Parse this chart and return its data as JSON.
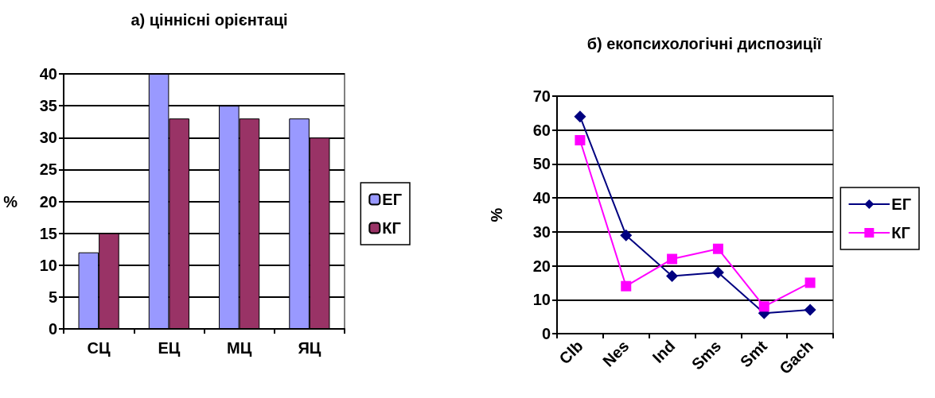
{
  "chart_data": [
    {
      "type": "bar",
      "title": "а) ціннісні орієнтаці",
      "ylabel": "%",
      "categories": [
        "СЦ",
        "ЕЦ",
        "МЦ",
        "ЯЦ"
      ],
      "series": [
        {
          "name": "ЕГ",
          "color": "#9999ff",
          "values": [
            12,
            40,
            35,
            33
          ]
        },
        {
          "name": "КГ",
          "color": "#993366",
          "values": [
            15,
            33,
            33,
            30
          ]
        }
      ],
      "ylim": [
        0,
        40
      ],
      "yticks": [
        0,
        5,
        10,
        15,
        20,
        25,
        30,
        35,
        40
      ],
      "grid": "y",
      "legend": "right"
    },
    {
      "type": "line",
      "title": "б) екопсихологічні диспозиції",
      "ylabel": "%",
      "categories": [
        "Clb",
        "Nes",
        "Ind",
        "Sms",
        "Smt",
        "Gach"
      ],
      "series": [
        {
          "name": "ЕГ",
          "color": "#000080",
          "marker": "diamond",
          "values": [
            64,
            29,
            17,
            18,
            6,
            7
          ]
        },
        {
          "name": "КГ",
          "color": "#ff00ff",
          "marker": "square",
          "values": [
            57,
            14,
            22,
            25,
            8,
            15
          ]
        }
      ],
      "ylim": [
        0,
        70
      ],
      "yticks": [
        0,
        10,
        20,
        30,
        40,
        50,
        60,
        70
      ],
      "grid": "y",
      "legend": "right"
    }
  ]
}
